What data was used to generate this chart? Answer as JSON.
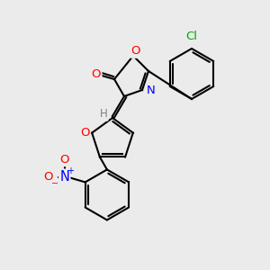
{
  "bg_color": "#ebebeb",
  "bond_color": "#000000",
  "atom_colors": {
    "O": "#ff0000",
    "N": "#0000ff",
    "Cl": "#00aa00",
    "H": "#808080"
  },
  "figsize": [
    3.0,
    3.0
  ],
  "dpi": 100
}
